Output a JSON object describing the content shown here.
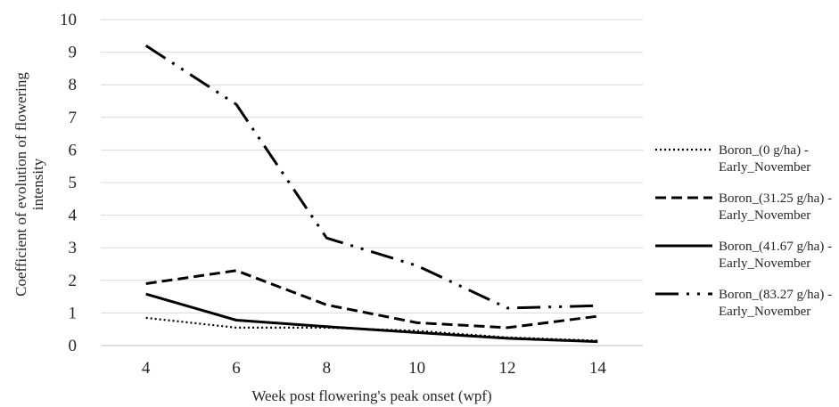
{
  "chart_data": {
    "type": "line",
    "xlabel": "Week post flowering's peak onset (wpf)",
    "ylabel": "Coefficient of  evolution of flowering intensity",
    "ylabel_lines": [
      "Coefficient of  evolution of flowering",
      "intensity"
    ],
    "x": [
      4,
      6,
      8,
      10,
      12,
      14
    ],
    "x_ticks": [
      "4",
      "6",
      "8",
      "10",
      "12",
      "14"
    ],
    "ylim": [
      0,
      10
    ],
    "y_ticks": [
      "0",
      "1",
      "2",
      "3",
      "4",
      "5",
      "6",
      "7",
      "8",
      "9",
      "10"
    ],
    "grid": "horizontal",
    "legend_position": "right",
    "series": [
      {
        "name": "Boron_(0 g/ha) - Early_November",
        "legend_lines": [
          "Boron_(0 g/ha) -",
          "Early_November"
        ],
        "values": [
          0.85,
          0.55,
          0.55,
          0.45,
          0.25,
          0.15
        ],
        "style": "dotted",
        "color": "#000000"
      },
      {
        "name": "Boron_(31.25 g/ha) - Early_November",
        "legend_lines": [
          "Boron_(31.25 g/ha) -",
          "Early_November"
        ],
        "values": [
          1.9,
          2.3,
          1.25,
          0.7,
          0.55,
          0.9
        ],
        "style": "dashed",
        "color": "#000000"
      },
      {
        "name": "Boron_(41.67 g/ha) - Early_November",
        "legend_lines": [
          "Boron_(41.67 g/ha) -",
          "Early_November"
        ],
        "values": [
          1.58,
          0.78,
          0.58,
          0.4,
          0.22,
          0.12
        ],
        "style": "solid",
        "color": "#000000"
      },
      {
        "name": "Boron_(83.27 g/ha) - Early_November",
        "legend_lines": [
          "Boron_(83.27 g/ha) -",
          "Early_November"
        ],
        "values": [
          9.2,
          7.4,
          3.3,
          2.45,
          1.15,
          1.22
        ],
        "style": "dash-dot-dot",
        "color": "#000000"
      }
    ]
  }
}
